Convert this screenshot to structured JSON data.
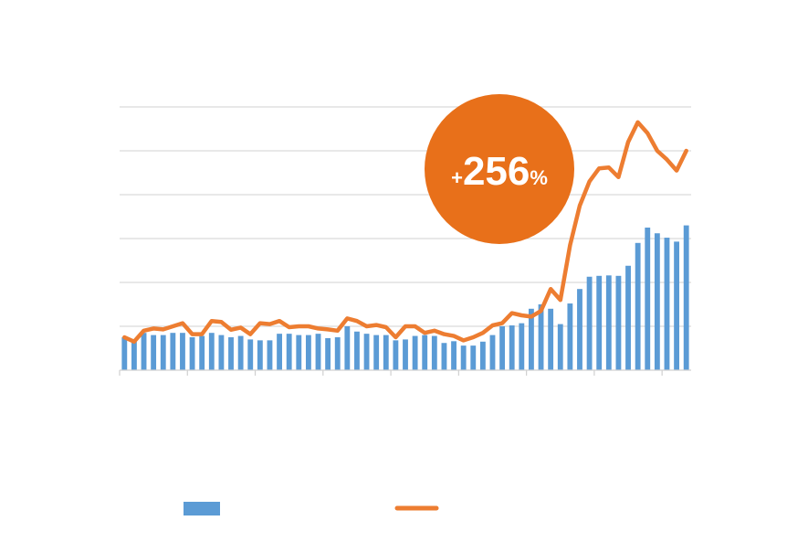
{
  "chart_data": {
    "type": "bar",
    "title": "",
    "xlabel": "",
    "ylabel": "",
    "ylim": [
      0,
      6
    ],
    "grid": true,
    "legend_position": "bottom",
    "annotation": {
      "sign": "+",
      "number": "256",
      "unit": "%",
      "color": "#e8701a"
    },
    "series": [
      {
        "kind": "bar",
        "color": "#5b9bd5",
        "values": [
          0.75,
          0.65,
          0.85,
          0.8,
          0.8,
          0.85,
          0.85,
          0.75,
          0.78,
          0.85,
          0.8,
          0.75,
          0.78,
          0.7,
          0.68,
          0.68,
          0.83,
          0.83,
          0.8,
          0.8,
          0.83,
          0.73,
          0.75,
          1.0,
          0.88,
          0.83,
          0.8,
          0.8,
          0.68,
          0.7,
          0.78,
          0.8,
          0.78,
          0.62,
          0.66,
          0.56,
          0.56,
          0.65,
          0.8,
          1.0,
          1.02,
          1.07,
          1.4,
          1.5,
          1.4,
          1.05,
          1.52,
          1.85,
          2.13,
          2.15,
          2.16,
          2.15,
          2.38,
          2.9,
          3.25,
          3.12,
          3.02,
          2.93,
          3.3
        ]
      },
      {
        "kind": "line",
        "color": "#ed7d31",
        "values": [
          0.75,
          0.65,
          0.9,
          0.95,
          0.93,
          1.0,
          1.07,
          0.82,
          0.82,
          1.12,
          1.1,
          0.92,
          0.97,
          0.82,
          1.07,
          1.05,
          1.12,
          0.98,
          1.0,
          1.0,
          0.95,
          0.93,
          0.9,
          1.18,
          1.12,
          1.0,
          1.03,
          0.98,
          0.75,
          1.0,
          1.0,
          0.85,
          0.9,
          0.82,
          0.78,
          0.68,
          0.75,
          0.85,
          1.02,
          1.07,
          1.3,
          1.25,
          1.22,
          1.35,
          1.85,
          1.6,
          2.85,
          3.75,
          4.3,
          4.6,
          4.62,
          4.4,
          5.2,
          5.65,
          5.4,
          5.0,
          4.8,
          4.55,
          5.0
        ]
      }
    ]
  }
}
